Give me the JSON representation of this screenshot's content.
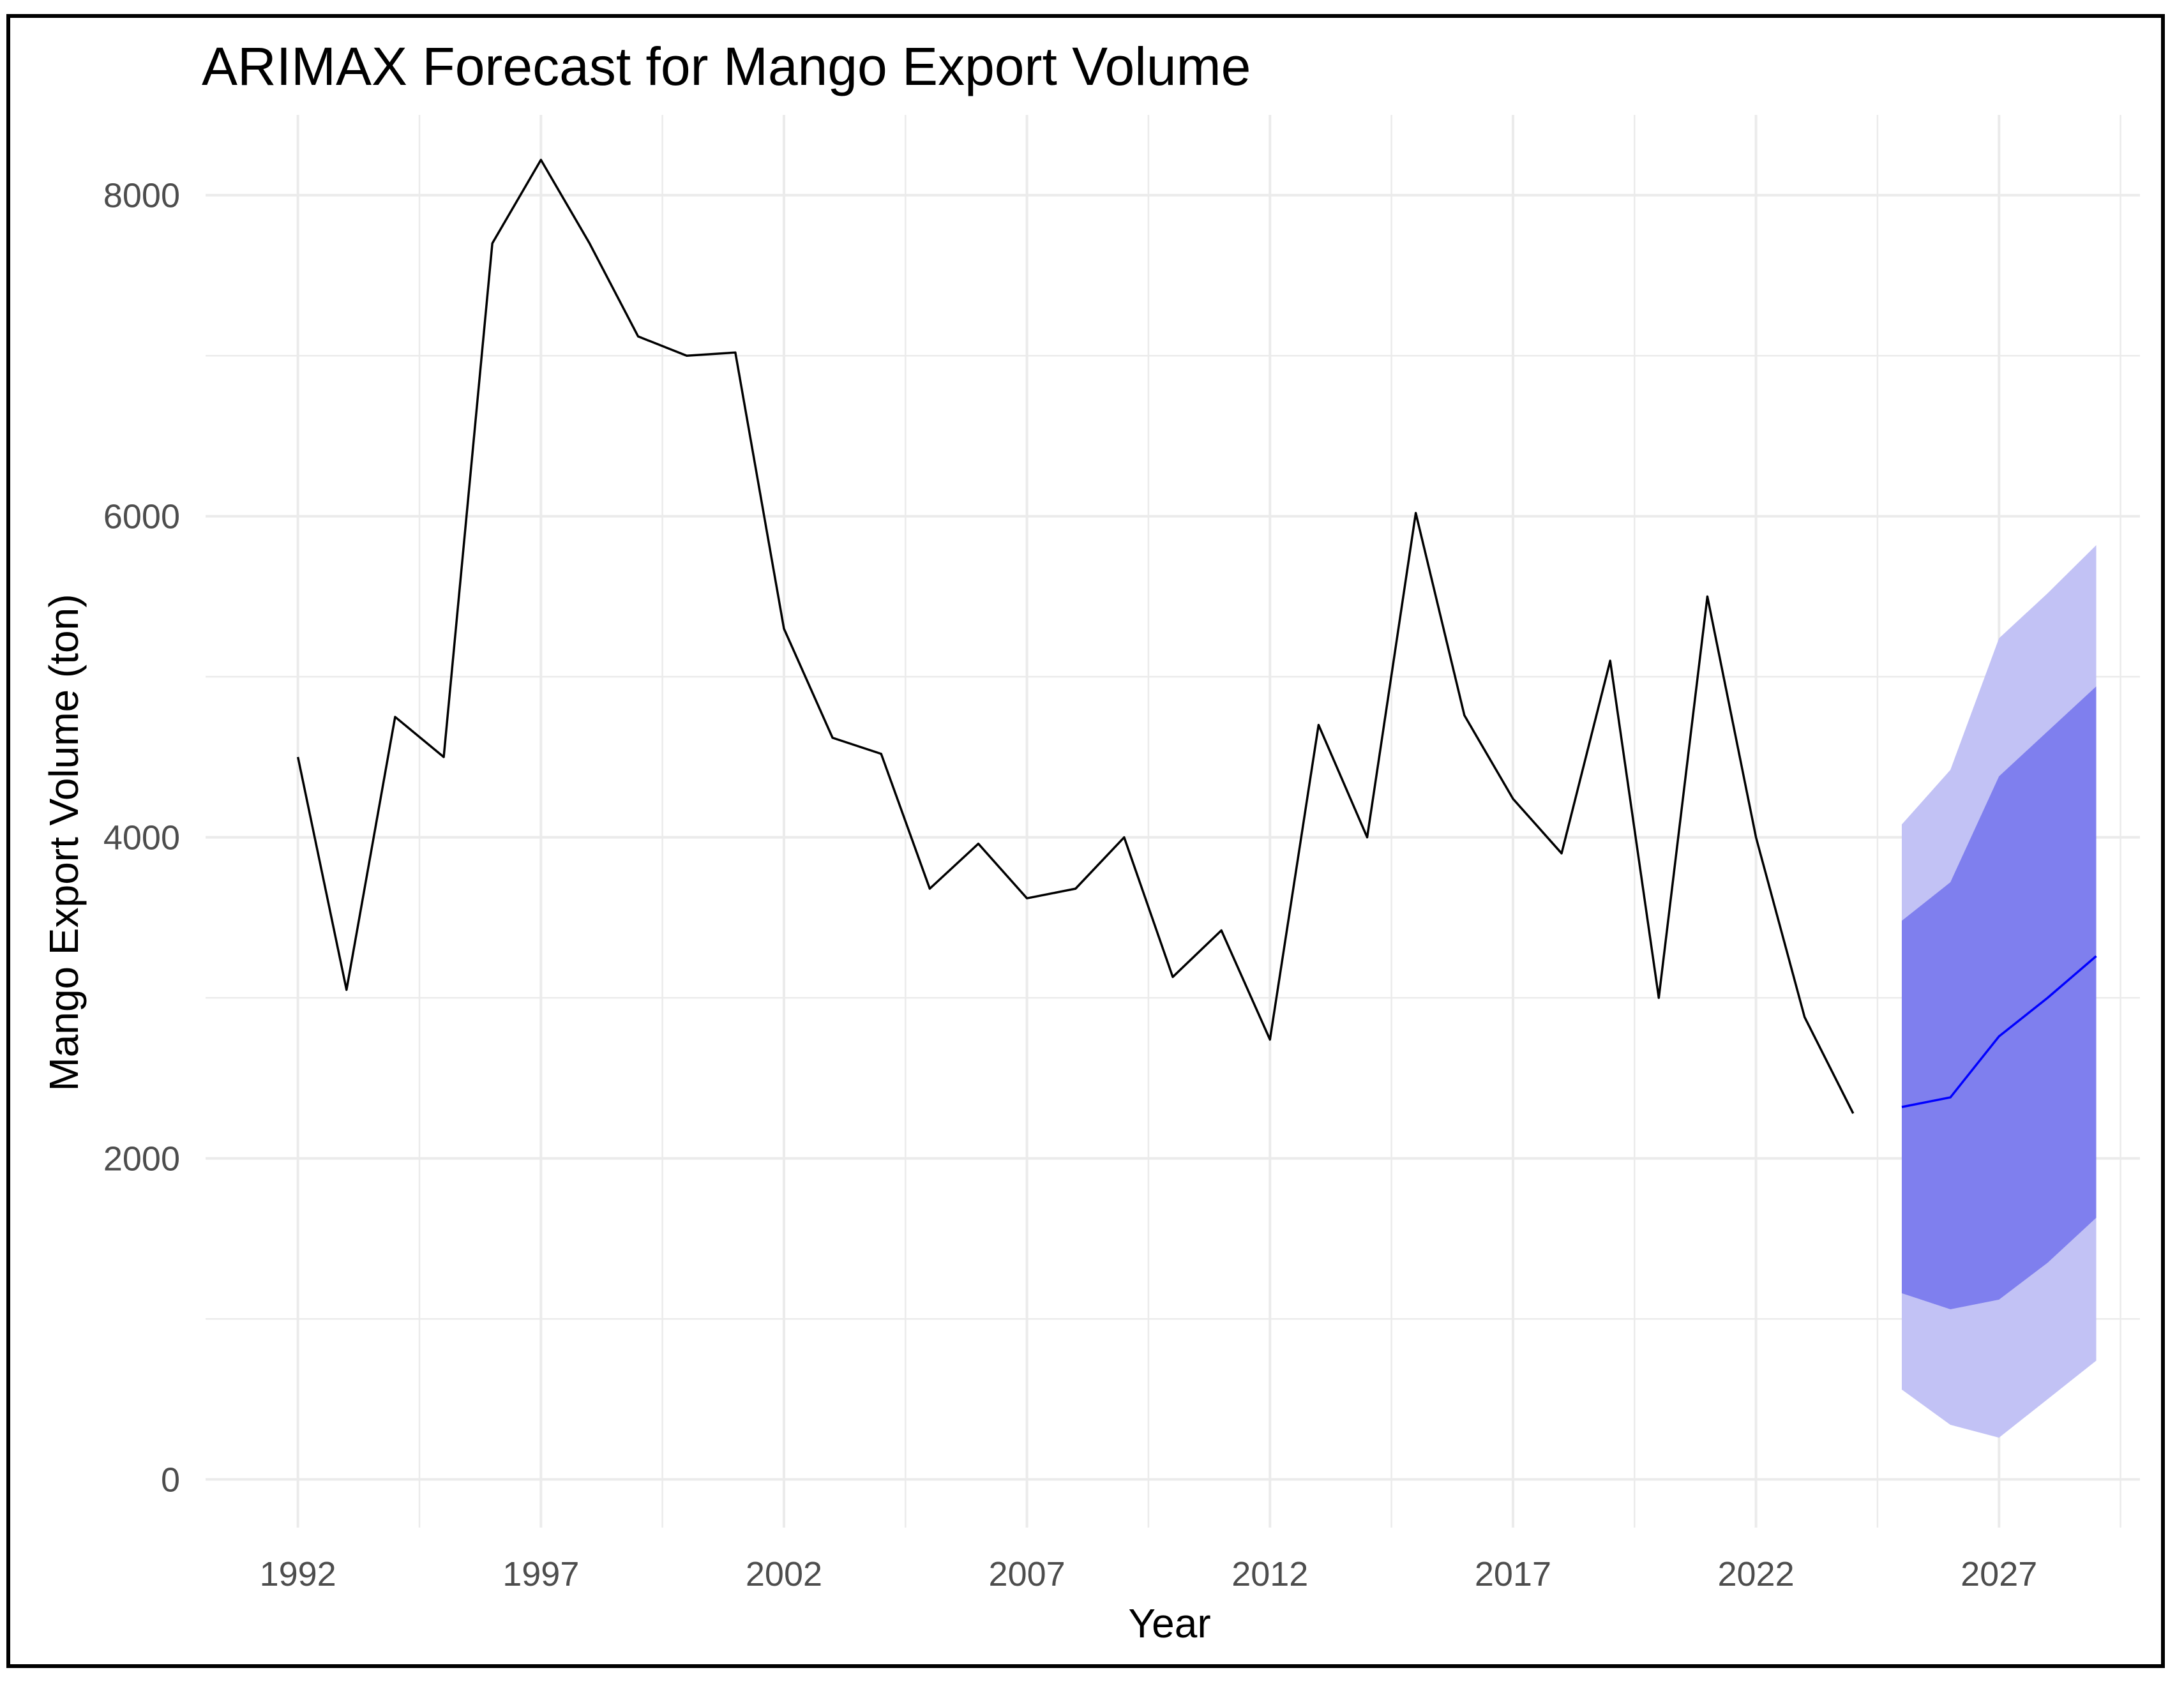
{
  "chart_data": {
    "type": "line",
    "title": "ARIMAX Forecast for Mango Export Volume",
    "xlabel": "Year",
    "ylabel": "Mango Export Volume (ton)",
    "xlim": [
      1990.1,
      2029.9
    ],
    "ylim": [
      -300,
      8500
    ],
    "x_ticks": [
      1992,
      1997,
      2002,
      2007,
      2012,
      2017,
      2022,
      2027
    ],
    "y_ticks": [
      0,
      2000,
      4000,
      6000,
      8000
    ],
    "grid": true,
    "colors": {
      "actual": "#000000",
      "forecast": "#0000ff",
      "pi80": "#7f7fee",
      "pi95": "#c2c2f5",
      "grid": "#ebebeb"
    },
    "series": [
      {
        "x": [
          1992,
          1993,
          1994,
          1995,
          1996,
          1997,
          1998,
          1999,
          2000,
          2001,
          2002,
          2003,
          2004,
          2005,
          2006,
          2007,
          2008,
          2009,
          2010,
          2011,
          2012,
          2013,
          2014,
          2015,
          2016,
          2017,
          2018,
          2019,
          2020,
          2021,
          2022,
          2023,
          2024
        ],
        "values": [
          4500,
          3050,
          4750,
          4500,
          7700,
          8220,
          7700,
          7120,
          7000,
          7020,
          5300,
          4620,
          4520,
          3680,
          3960,
          3620,
          3680,
          4000,
          3130,
          3420,
          2740,
          4700,
          4000,
          6020,
          4760,
          4240,
          3900,
          5100,
          3000,
          5500,
          4000,
          2880,
          2280
        ]
      },
      {
        "x": [
          2025,
          2026,
          2027,
          2028,
          2029
        ],
        "values": [
          2320,
          2380,
          2760,
          3000,
          3260
        ],
        "lower_80": [
          1160,
          1060,
          1120,
          1350,
          1630
        ],
        "upper_80": [
          3480,
          3720,
          4380,
          4660,
          4940
        ],
        "lower_95": [
          560,
          340,
          260,
          500,
          740
        ],
        "upper_95": [
          4080,
          4420,
          5240,
          5520,
          5820
        ]
      }
    ]
  }
}
